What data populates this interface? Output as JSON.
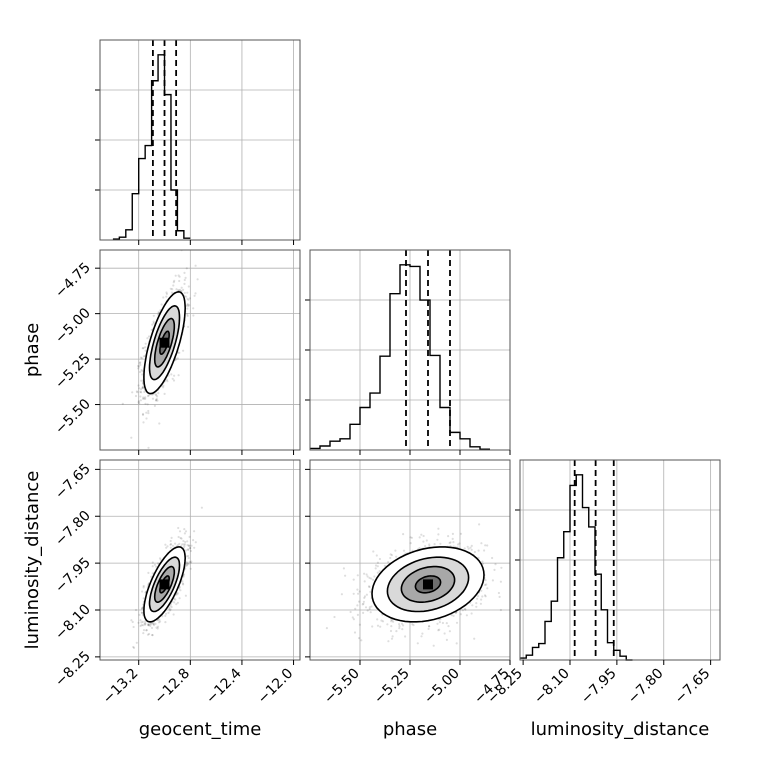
{
  "chart_data": [
    {
      "type": "histogram",
      "variable": "geocent_time",
      "x_range": [
        -13.5,
        -11.95
      ],
      "x_ticks": [
        -13.2,
        -12.8,
        -12.4,
        -12.0
      ],
      "quantiles": [
        -13.09,
        -13.0,
        -12.91
      ],
      "bin_width": 0.05,
      "bin_start": -13.4,
      "counts": [
        1,
        3,
        11,
        50,
        88,
        102,
        172,
        200,
        157,
        54,
        10,
        2
      ]
    },
    {
      "type": "histogram",
      "variable": "phase",
      "x_range": [
        -5.75,
        -4.75
      ],
      "x_ticks": [
        -5.5,
        -5.25,
        -5.0,
        -4.75
      ],
      "quantiles": [
        -5.27,
        -5.16,
        -5.05
      ],
      "bin_width": 0.05,
      "bin_start": -5.75,
      "counts": [
        2,
        5,
        11,
        14,
        32,
        53,
        71,
        117,
        195,
        231,
        229,
        187,
        118,
        53,
        22,
        14,
        4,
        1
      ]
    },
    {
      "type": "histogram",
      "variable": "luminosity_distance",
      "x_range": [
        -8.26,
        -7.62
      ],
      "x_ticks": [
        -8.25,
        -8.1,
        -7.95,
        -7.8,
        -7.65
      ],
      "quantiles": [
        -8.085,
        -8.018,
        -7.96
      ],
      "bin_width": 0.02,
      "bin_start": -8.26,
      "counts": [
        2,
        5,
        13,
        17,
        40,
        61,
        106,
        133,
        181,
        192,
        158,
        138,
        89,
        52,
        18,
        10,
        4,
        0
      ]
    },
    {
      "type": "scatter",
      "x_variable": "geocent_time",
      "y_variable": "phase",
      "x_range": [
        -13.5,
        -11.95
      ],
      "y_range": [
        -5.75,
        -4.65
      ],
      "x_ticks": [
        -13.2,
        -12.8,
        -12.4,
        -12.0
      ],
      "y_ticks": [
        -5.5,
        -5.25,
        -5.0,
        -4.75
      ],
      "mean": [
        -13.0,
        -5.16
      ],
      "sd": [
        0.08,
        0.14
      ],
      "corr": 0.68
    },
    {
      "type": "scatter",
      "x_variable": "geocent_time",
      "y_variable": "luminosity_distance",
      "x_range": [
        -13.5,
        -11.95
      ],
      "y_range": [
        -8.26,
        -7.62
      ],
      "x_ticks": [
        -13.2,
        -12.8,
        -12.4,
        -12.0
      ],
      "y_ticks": [
        -8.25,
        -8.1,
        -7.95,
        -7.8,
        -7.65
      ],
      "mean": [
        -13.0,
        -8.018
      ],
      "sd": [
        0.08,
        0.06
      ],
      "corr": 0.7
    },
    {
      "type": "scatter",
      "x_variable": "phase",
      "y_variable": "luminosity_distance",
      "x_range": [
        -5.75,
        -4.75
      ],
      "y_range": [
        -8.26,
        -7.62
      ],
      "x_ticks": [
        -5.5,
        -5.25,
        -5.0,
        -4.75
      ],
      "y_ticks": [
        -8.25,
        -8.1,
        -7.95,
        -7.8,
        -7.65
      ],
      "mean": [
        -5.16,
        -8.018
      ],
      "sd": [
        0.14,
        0.06
      ],
      "corr": 0.25
    }
  ],
  "labels": {
    "geocent_time": "geocent_time",
    "phase": "phase",
    "luminosity_distance": "luminosity_distance"
  },
  "tick_labels": {
    "geocent_time": [
      "−13.2",
      "−12.8",
      "−12.4",
      "−12.0"
    ],
    "phase": [
      "−5.50",
      "−5.25",
      "−5.00",
      "−4.75"
    ],
    "luminosity_distance": [
      "−8.25",
      "−8.10",
      "−7.95",
      "−7.80",
      "−7.65"
    ]
  },
  "grid": true
}
